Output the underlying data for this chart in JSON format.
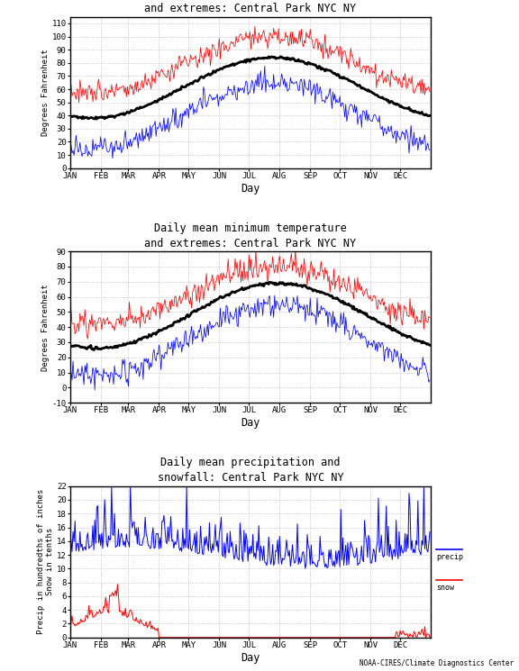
{
  "title1": "Daily mean maximum temperature\nand extremes: Central Park NYC NY",
  "title2": "Daily mean minimum temperature\nand extremes: Central Park NYC NY",
  "title3": "Daily mean precipitation and\nsnowfall: Central Park NYC NY",
  "ylabel1": "Degrees Fahrenheit",
  "ylabel2": "Degrees Fahrenheit",
  "ylabel3": "Precip in hundredths of inches\nSnow in tenths",
  "xlabel": "Day",
  "months": [
    "JAN",
    "FEB",
    "MAR",
    "APR",
    "MAY",
    "JUN",
    "JUL",
    "AUG",
    "SEP",
    "OCT",
    "NOV",
    "DEC"
  ],
  "bg_color": "#ffffff",
  "red_color": "#ff0000",
  "blue_color": "#0000ff",
  "black_color": "#000000",
  "grid_color": "#b0b0b0",
  "footnote": "NOAA-CIRES/Climate Diagnostics Center",
  "panel1_ylim": [
    0,
    115
  ],
  "panel1_yticks": [
    0,
    10,
    20,
    30,
    40,
    50,
    60,
    70,
    80,
    90,
    100,
    110
  ],
  "panel2_ylim": [
    -10,
    90
  ],
  "panel2_yticks": [
    -10,
    0,
    10,
    20,
    30,
    40,
    50,
    60,
    70,
    80,
    90
  ],
  "panel3_ylim": [
    0,
    22
  ],
  "panel3_yticks": [
    0,
    2,
    4,
    6,
    8,
    10,
    12,
    14,
    16,
    18,
    20,
    22
  ],
  "month_days": [
    0,
    31,
    59,
    90,
    120,
    151,
    181,
    212,
    243,
    273,
    304,
    334
  ]
}
